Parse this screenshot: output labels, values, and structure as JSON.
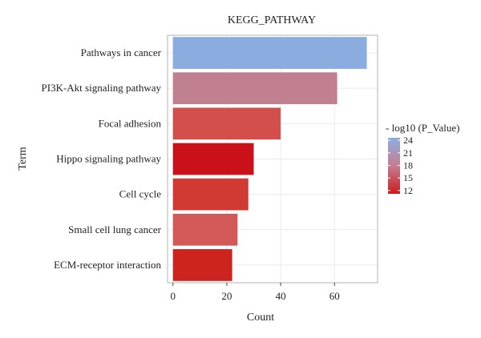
{
  "chart_data": {
    "type": "bar",
    "orientation": "horizontal",
    "title": "KEGG_PATHWAY",
    "xlabel": "Count",
    "ylabel": "Term",
    "xlim": [
      -2,
      76
    ],
    "xticks": [
      0,
      20,
      40,
      60
    ],
    "categories": [
      "Pathways in cancer",
      "PI3K-Akt signaling pathway",
      "Focal adhesion",
      "Hippo signaling pathway",
      "Cell cycle",
      "Small cell lung cancer",
      "ECM-receptor interaction"
    ],
    "values": [
      72,
      61,
      40,
      30,
      28,
      24,
      22
    ],
    "color_values": [
      24,
      18.5,
      14.5,
      12,
      13,
      15.5,
      12.5
    ],
    "colors": [
      "#8bacdf",
      "#c0808f",
      "#d24f4c",
      "#ca1018",
      "#d03a33",
      "#d35958",
      "#cd2420"
    ],
    "legend": {
      "title": "- log10 (P_Value)",
      "ticks": [
        24,
        21,
        18,
        15,
        12
      ],
      "range": [
        11.2,
        24.6
      ],
      "color_low": "#cc1c1c",
      "color_mid": "#c57e91",
      "color_high": "#8bafe0",
      "position": "right"
    },
    "grid": true
  }
}
